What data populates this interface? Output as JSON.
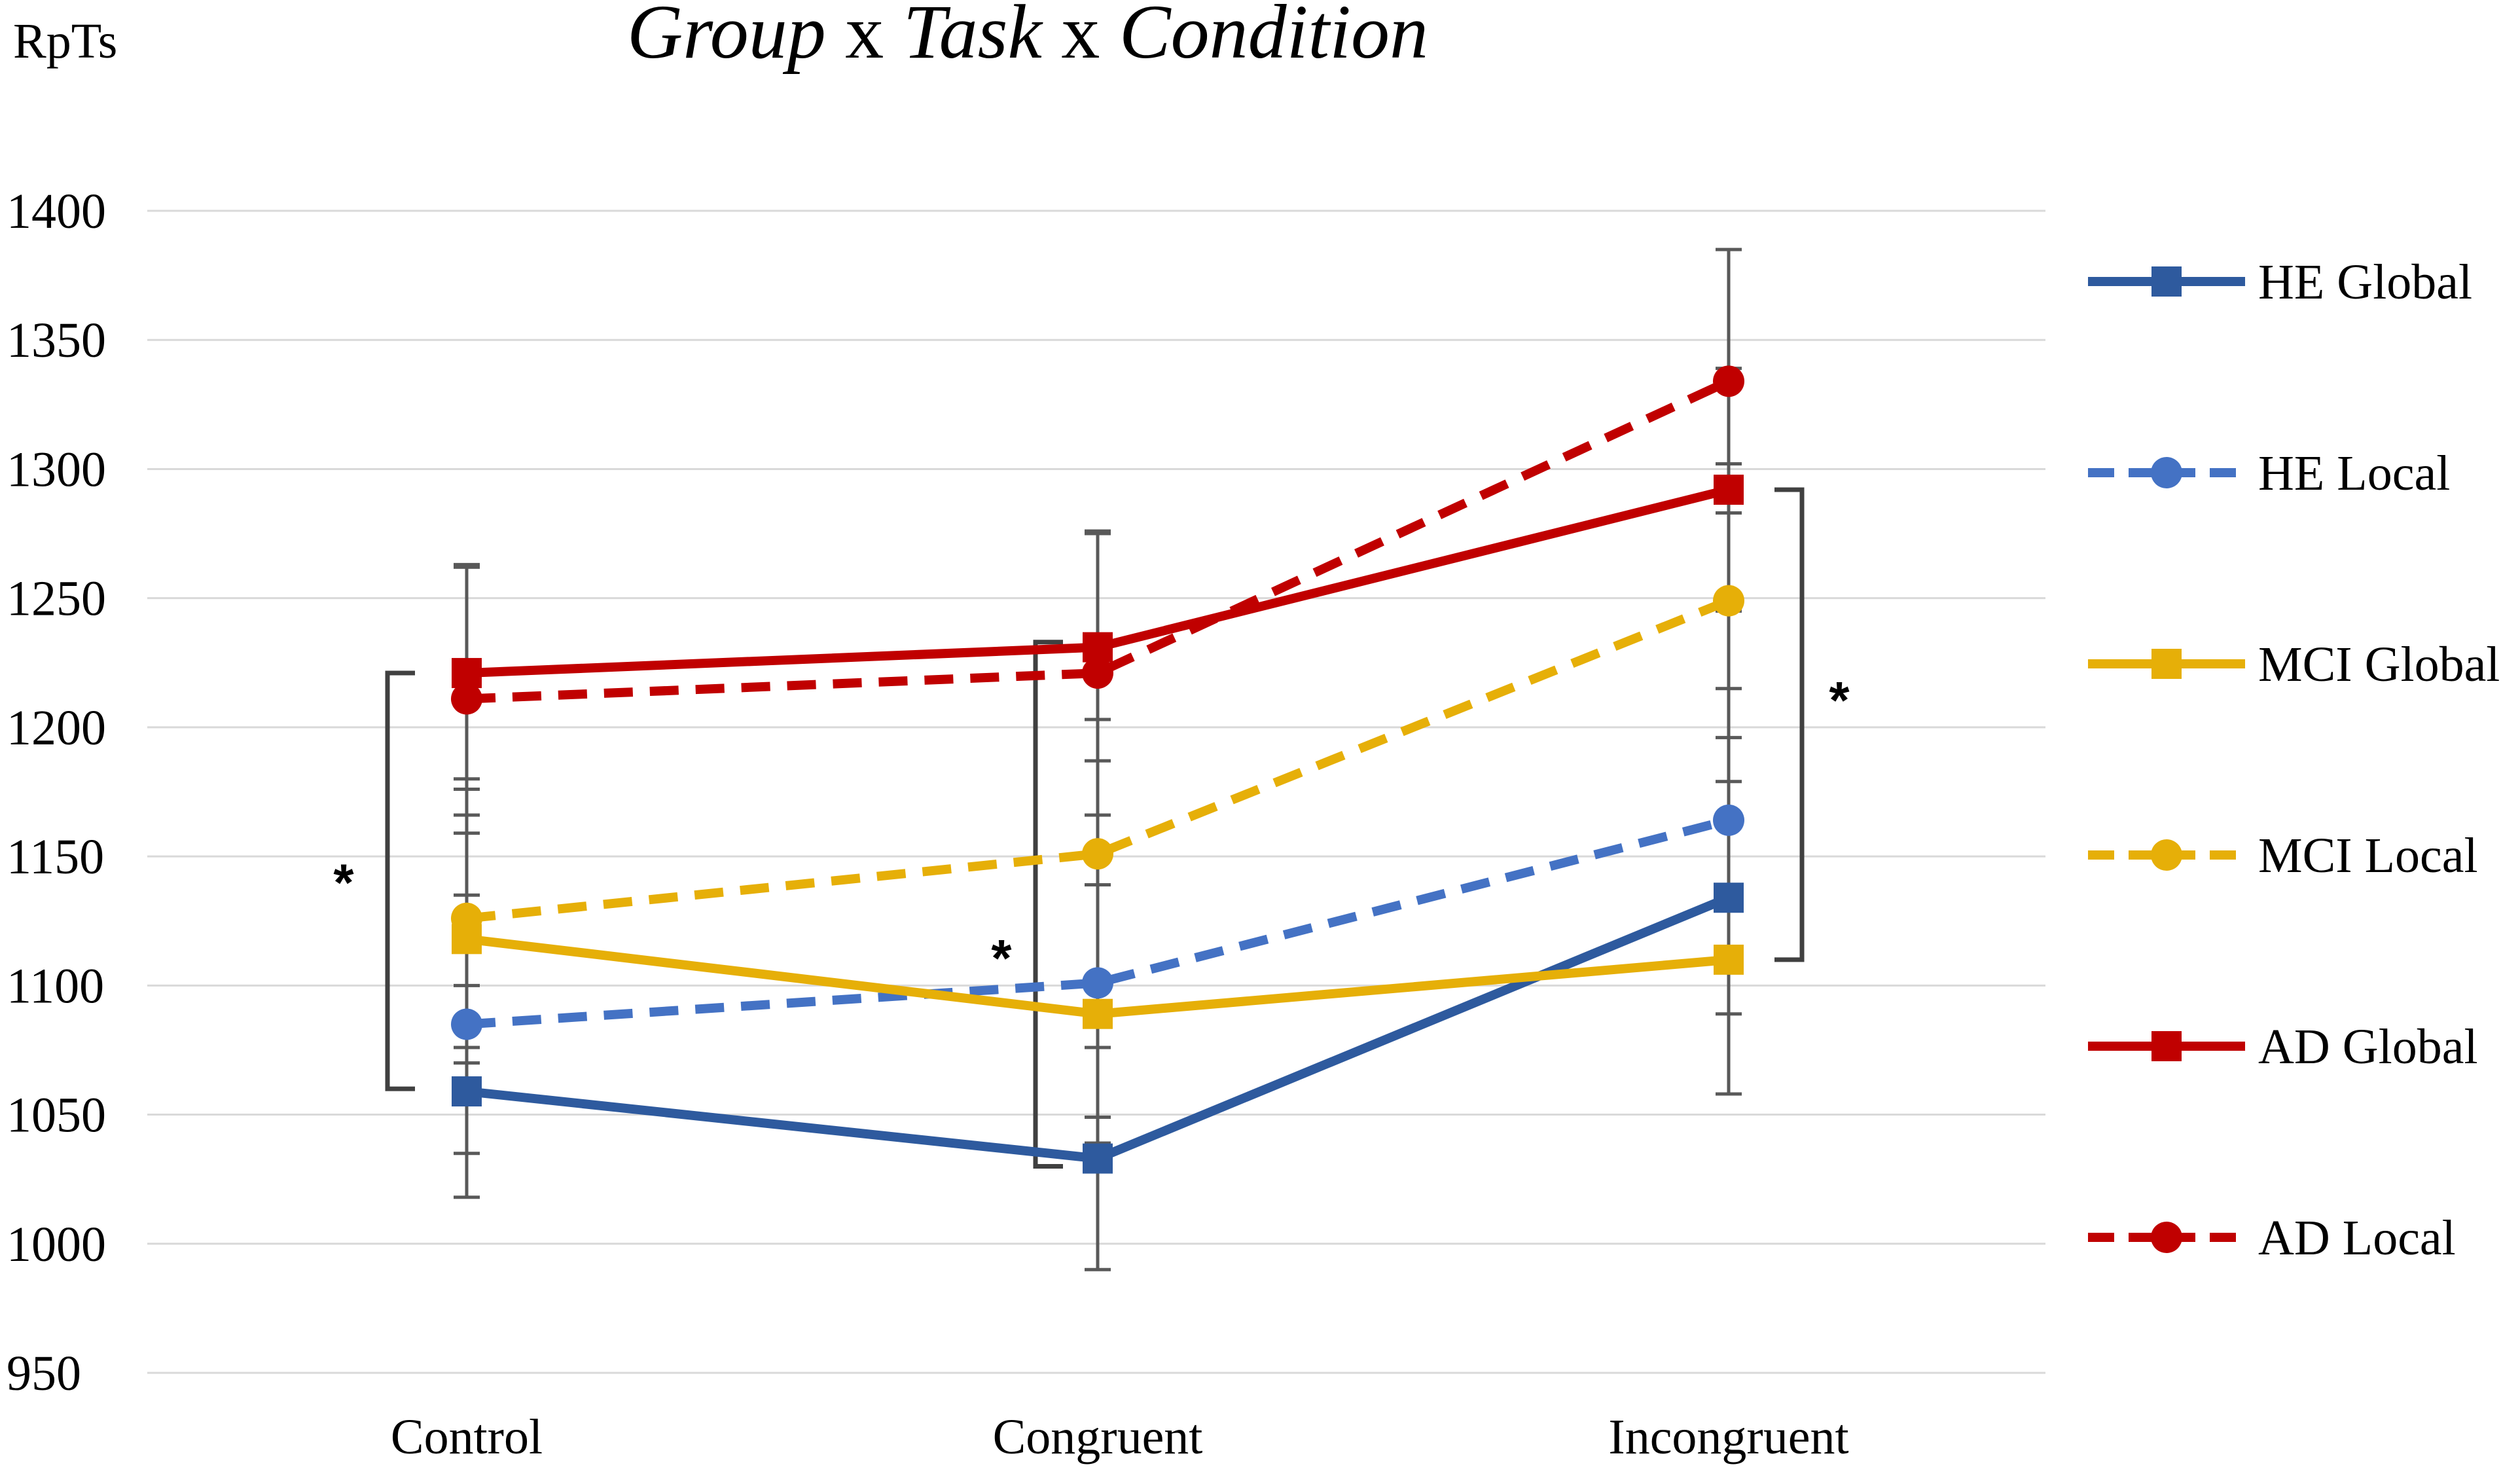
{
  "chart_data": {
    "type": "line",
    "title": {
      "parts": [
        {
          "text": "Group",
          "italic": true
        },
        {
          "text": " x ",
          "italic": false
        },
        {
          "text": "Task",
          "italic": true
        },
        {
          "text": " x ",
          "italic": false
        },
        {
          "text": "Condition",
          "italic": true
        }
      ]
    },
    "ylabel": "RpTs",
    "xlabel": "",
    "categories": [
      "Control",
      "Congruent",
      "Incongruent"
    ],
    "ylim": [
      950,
      1400
    ],
    "yticks": [
      950,
      1000,
      1050,
      1100,
      1150,
      1200,
      1250,
      1300,
      1350,
      1400
    ],
    "grid": true,
    "legend_position": "right",
    "series": [
      {
        "name": "HE Global",
        "values": [
          1059,
          1033,
          1134
        ],
        "error": [
          41,
          43,
          45
        ],
        "color": "#2E5A9E",
        "dash": false,
        "marker": "square"
      },
      {
        "name": "HE Local",
        "values": [
          1085,
          1101,
          1164
        ],
        "error": [
          50,
          52,
          51
        ],
        "color": "#4472C4",
        "dash": true,
        "marker": "circle"
      },
      {
        "name": "MCI Global",
        "values": [
          1118,
          1089,
          1110
        ],
        "error": [
          48,
          50,
          52
        ],
        "color": "#E6AF08",
        "dash": false,
        "marker": "square"
      },
      {
        "name": "MCI Local",
        "values": [
          1126,
          1151,
          1249
        ],
        "error": [
          50,
          52,
          53
        ],
        "color": "#E6AF08",
        "dash": true,
        "marker": "circle"
      },
      {
        "name": "AD Global",
        "values": [
          1221,
          1231,
          1292
        ],
        "error": [
          41,
          44,
          47
        ],
        "color": "#C00000",
        "dash": false,
        "marker": "square"
      },
      {
        "name": "AD Local",
        "values": [
          1211,
          1221,
          1334
        ],
        "error": [
          52,
          55,
          51
        ],
        "color": "#C00000",
        "dash": true,
        "marker": "circle"
      }
    ],
    "annotations": [
      {
        "text": "*",
        "category": "Control",
        "bracket_range": [
          1060,
          1221
        ],
        "side": "left"
      },
      {
        "text": "*",
        "category": "Congruent",
        "bracket_range": [
          1030,
          1233
        ],
        "side": "left"
      },
      {
        "text": "*",
        "category": "Incongruent",
        "bracket_range": [
          1110,
          1292
        ],
        "side": "right"
      }
    ]
  }
}
